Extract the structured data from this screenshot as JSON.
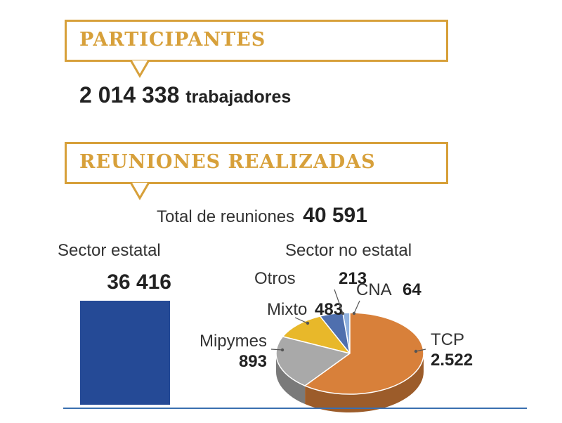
{
  "participants": {
    "title": "PARTICIPANTES",
    "value": "2 014 338",
    "unit": "trabajadores"
  },
  "meetings": {
    "title": "REUNIONES REALIZADAS",
    "total_label": "Total de reuniones",
    "total_value": "40 591"
  },
  "chart_data": [
    {
      "type": "bar",
      "title": "Sector estatal",
      "categories": [
        "Sector estatal"
      ],
      "values": [
        36416
      ],
      "value_label": "36 416",
      "colors": [
        "#254a96"
      ]
    },
    {
      "type": "pie",
      "title": "Sector no estatal",
      "slices": [
        {
          "label": "TCP",
          "value": 2522,
          "value_label": "2.522",
          "color": "#d8803a"
        },
        {
          "label": "Mipymes",
          "value": 893,
          "value_label": "893",
          "color": "#a9a9a9"
        },
        {
          "label": "Mixto",
          "value": 483,
          "value_label": "483",
          "color": "#e8b82a"
        },
        {
          "label": "Otros",
          "value": 213,
          "value_label": "213",
          "color": "#4f6fae"
        },
        {
          "label": "CNA",
          "value": 64,
          "value_label": "64",
          "color": "#8fb0de"
        }
      ],
      "style": "3d"
    }
  ]
}
